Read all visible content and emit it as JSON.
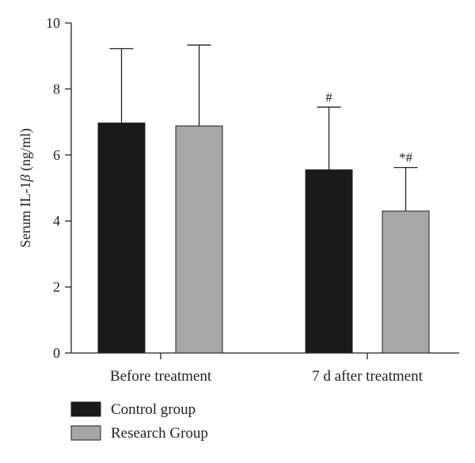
{
  "chart_data": {
    "type": "bar",
    "title": "",
    "xlabel": "",
    "ylabel_main": "Serum IL-1",
    "ylabel_symbol": "β",
    "ylabel_unit": " (ng/ml)",
    "ylim": [
      0,
      10
    ],
    "yticks": [
      "0",
      "2",
      "4",
      "6",
      "8",
      "10"
    ],
    "categories": [
      "Before treatment",
      "7 d after treatment"
    ],
    "series": [
      {
        "name": "Control group",
        "color": "#1a1a1a",
        "values": [
          6.97,
          5.55
        ],
        "errors": [
          2.25,
          1.9
        ],
        "annotations": [
          "",
          "#"
        ]
      },
      {
        "name": "Research Group",
        "color": "#a6a6a6",
        "values": [
          6.88,
          4.3
        ],
        "errors": [
          2.45,
          1.32
        ],
        "annotations": [
          "",
          "*#"
        ]
      }
    ],
    "grid": false,
    "legend_position": "bottom-left"
  }
}
